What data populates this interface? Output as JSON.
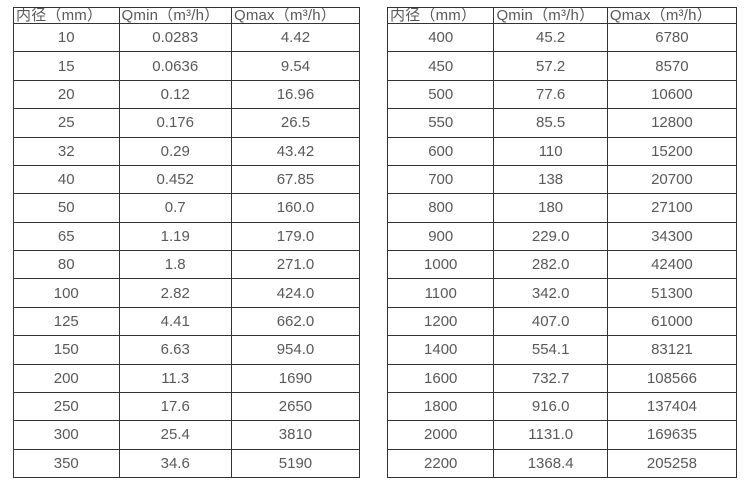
{
  "tables": [
    {
      "name": "flow-range-small-diameters",
      "headers": [
        "内径（mm）",
        "Qmin（m³/h）",
        "Qmax（m³/h）"
      ],
      "rows": [
        [
          "10",
          "0.0283",
          "4.42"
        ],
        [
          "15",
          "0.0636",
          "9.54"
        ],
        [
          "20",
          "0.12",
          "16.96"
        ],
        [
          "25",
          "0.176",
          "26.5"
        ],
        [
          "32",
          "0.29",
          "43.42"
        ],
        [
          "40",
          "0.452",
          "67.85"
        ],
        [
          "50",
          "0.7",
          "160.0"
        ],
        [
          "65",
          "1.19",
          "179.0"
        ],
        [
          "80",
          "1.8",
          "271.0"
        ],
        [
          "100",
          "2.82",
          "424.0"
        ],
        [
          "125",
          "4.41",
          "662.0"
        ],
        [
          "150",
          "6.63",
          "954.0"
        ],
        [
          "200",
          "11.3",
          "1690"
        ],
        [
          "250",
          "17.6",
          "2650"
        ],
        [
          "300",
          "25.4",
          "3810"
        ],
        [
          "350",
          "34.6",
          "5190"
        ]
      ]
    },
    {
      "name": "flow-range-large-diameters",
      "headers": [
        "内径（mm）",
        "Qmin（m³/h）",
        "Qmax（m³/h）"
      ],
      "rows": [
        [
          "400",
          "45.2",
          "6780"
        ],
        [
          "450",
          "57.2",
          "8570"
        ],
        [
          "500",
          "77.6",
          "10600"
        ],
        [
          "550",
          "85.5",
          "12800"
        ],
        [
          "600",
          "110",
          "15200"
        ],
        [
          "700",
          "138",
          "20700"
        ],
        [
          "800",
          "180",
          "27100"
        ],
        [
          "900",
          "229.0",
          "34300"
        ],
        [
          "1000",
          "282.0",
          "42400"
        ],
        [
          "1100",
          "342.0",
          "51300"
        ],
        [
          "1200",
          "407.0",
          "61000"
        ],
        [
          "1400",
          "554.1",
          "83121"
        ],
        [
          "1600",
          "732.7",
          "108566"
        ],
        [
          "1800",
          "916.0",
          "137404"
        ],
        [
          "2000",
          "1131.0",
          "169635"
        ],
        [
          "2200",
          "1368.4",
          "205258"
        ]
      ]
    }
  ],
  "colors": {
    "border": "#333333",
    "text": "#595959",
    "background": "#ffffff"
  }
}
